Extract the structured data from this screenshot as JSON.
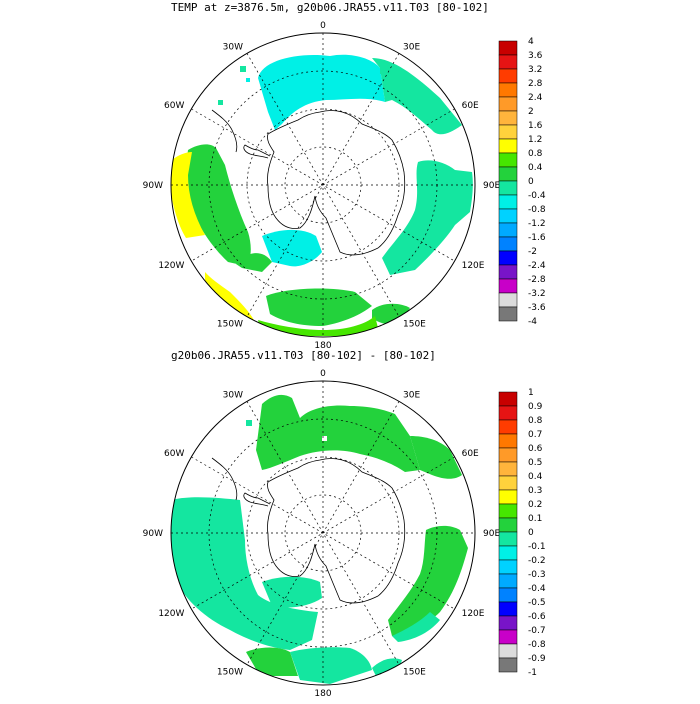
{
  "panels": [
    {
      "title": "TEMP at z=3876.5m, g20b06.JRA55.v11.T03 [80-102]",
      "lon_labels": [
        "0",
        "30E",
        "60E",
        "90E",
        "120E",
        "150E",
        "180",
        "150W",
        "120W",
        "90W",
        "60W",
        "30W"
      ],
      "colorbar": {
        "labels": [
          "4",
          "3.6",
          "3.2",
          "2.8",
          "2.4",
          "2",
          "1.6",
          "1.2",
          "0.8",
          "0.4",
          "0",
          "-0.4",
          "-0.8",
          "-1.2",
          "-1.6",
          "-2",
          "-2.4",
          "-2.8",
          "-3.2",
          "-3.6",
          "-4"
        ],
        "colors": [
          "#c80000",
          "#e61414",
          "#ff3c00",
          "#ff7800",
          "#ff9a28",
          "#ffb43c",
          "#ffd23c",
          "#ffff00",
          "#46e600",
          "#23d23c",
          "#14e6a0",
          "#00f0e6",
          "#00d2ff",
          "#00aaff",
          "#0082ff",
          "#0000ff",
          "#7814c8",
          "#c800c8",
          "#dcdcdc",
          "#787878"
        ]
      }
    },
    {
      "title": "g20b06.JRA55.v11.T03 [80-102] -  [80-102]",
      "lon_labels": [
        "0",
        "30E",
        "60E",
        "90E",
        "120E",
        "150E",
        "180",
        "150W",
        "120W",
        "90W",
        "60W",
        "30W"
      ],
      "colorbar": {
        "labels": [
          "1",
          "0.9",
          "0.8",
          "0.7",
          "0.6",
          "0.5",
          "0.4",
          "0.3",
          "0.2",
          "0.1",
          "0",
          "-0.1",
          "-0.2",
          "-0.3",
          "-0.4",
          "-0.5",
          "-0.6",
          "-0.7",
          "-0.8",
          "-0.9",
          "-1"
        ],
        "colors": [
          "#c80000",
          "#e61414",
          "#ff3c00",
          "#ff7800",
          "#ff9a28",
          "#ffb43c",
          "#ffd23c",
          "#ffff00",
          "#46e600",
          "#23d23c",
          "#14e6a0",
          "#00f0e6",
          "#00d2ff",
          "#00aaff",
          "#0082ff",
          "#0000ff",
          "#7814c8",
          "#c800c8",
          "#dcdcdc",
          "#787878"
        ]
      }
    }
  ]
}
